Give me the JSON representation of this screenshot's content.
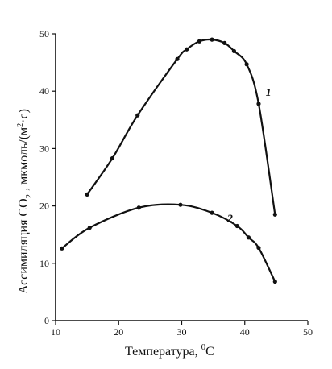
{
  "chart_data": {
    "type": "line",
    "xlabel": "Температура, ^{0}C",
    "xlabel_main": "Температура, ",
    "xlabel_sup": "0",
    "xlabel_unit": "C",
    "ylabel": "Ассимиляция CO_{2} , мкмоль/(м^{2}·с)",
    "ylabel_pre": "Ассимиляция CO",
    "ylabel_sub": "2",
    "ylabel_post": " , мкмоль/(м",
    "ylabel_sup": "2",
    "ylabel_end": "·с)",
    "xlim": [
      10,
      50
    ],
    "ylim": [
      0,
      50
    ],
    "xticks": [
      10,
      20,
      30,
      40,
      50
    ],
    "yticks": [
      0,
      10,
      20,
      30,
      40,
      50
    ],
    "grid": false,
    "series": [
      {
        "name": "1",
        "x": [
          15,
          19,
          23,
          29.3,
          30.8,
          32.8,
          34.8,
          36.8,
          38.3,
          40.3,
          42.2,
          44.8
        ],
        "y": [
          22,
          28.3,
          35.8,
          45.6,
          47.3,
          48.7,
          49,
          48.4,
          47,
          44.7,
          37.8,
          18.5
        ]
      },
      {
        "name": "2",
        "x": [
          11,
          15.4,
          23.2,
          29.8,
          34.8,
          38.8,
          40.6,
          42.2,
          44.8
        ],
        "y": [
          12.6,
          16.2,
          19.7,
          20.2,
          18.8,
          16.5,
          14.5,
          12.7,
          6.8
        ]
      }
    ]
  }
}
